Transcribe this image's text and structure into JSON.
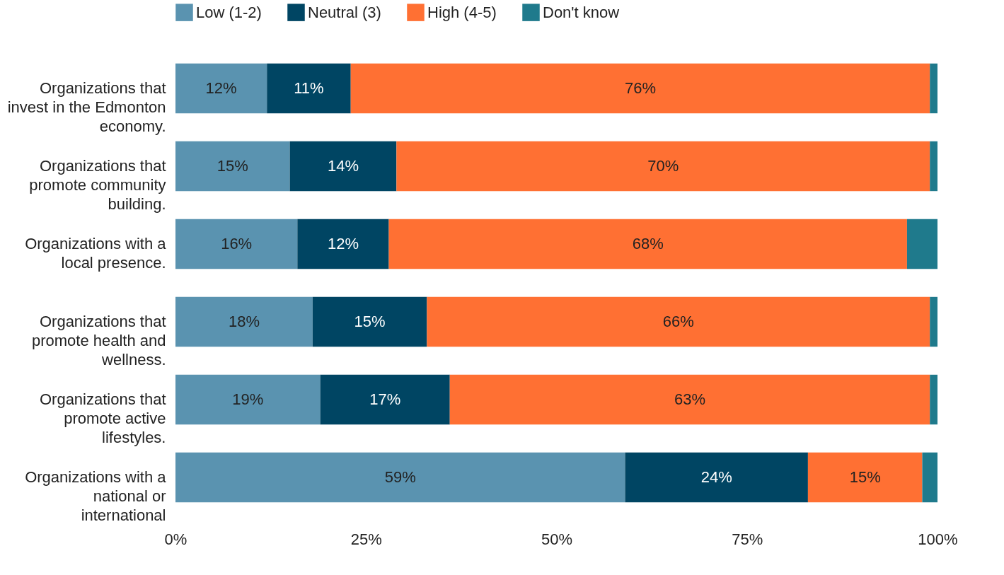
{
  "chart_data": {
    "type": "bar",
    "orientation": "horizontal",
    "stacked": true,
    "legend": "top",
    "categories": [
      "Organizations that invest in the Edmonton economy.",
      "Organizations that promote community building.",
      "Organizations with a local presence.",
      "Organizations that promote health and wellness.",
      "Organizations that promote active lifestyles.",
      "Organizations with a national or international"
    ],
    "series": [
      {
        "name": "Low (1-2)",
        "color": "#5a93b0",
        "values": [
          12,
          15,
          16,
          18,
          19,
          59
        ],
        "value_labels": [
          "12%",
          "15%",
          "16%",
          "18%",
          "19%",
          "59%"
        ]
      },
      {
        "name": "Neutral (3)",
        "color": "#004563",
        "values": [
          11,
          14,
          12,
          15,
          17,
          24
        ],
        "value_labels": [
          "11%",
          "14%",
          "12%",
          "15%",
          "17%",
          "24%"
        ]
      },
      {
        "name": "High (4-5)",
        "color": "#ff7033",
        "values": [
          76,
          70,
          68,
          66,
          63,
          15
        ],
        "value_labels": [
          "76%",
          "70%",
          "68%",
          "66%",
          "63%",
          "15%"
        ]
      },
      {
        "name": "Don't know",
        "color": "#1f7a8c",
        "values": [
          1,
          1,
          4,
          1,
          1,
          2
        ]
      }
    ],
    "xlim": [
      0,
      100
    ],
    "xticks": [
      {
        "value": 0,
        "label": "0%"
      },
      {
        "value": 25,
        "label": "25%"
      },
      {
        "value": 50,
        "label": "50%"
      },
      {
        "value": 75,
        "label": "75%"
      },
      {
        "value": 100,
        "label": "100%"
      }
    ],
    "grid": false
  }
}
